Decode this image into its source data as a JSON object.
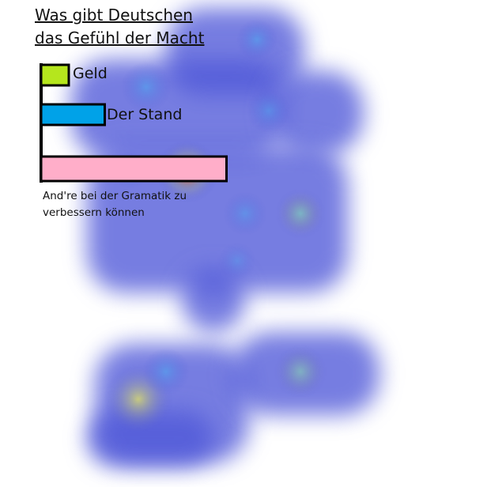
{
  "chart_data": {
    "type": "bar",
    "orientation": "horizontal",
    "title": [
      "Was gibt Deutschen",
      "das Gefühl der Macht"
    ],
    "categories": [
      "Geld",
      "Der Stand",
      "And're bei der Gramatik zu verbessern können"
    ],
    "values": [
      1,
      2.3,
      6.7
    ],
    "colors": [
      "#b5e61d",
      "#00a2e8",
      "#ffaec9"
    ],
    "grid": false,
    "legend": "none"
  },
  "heatmap_overlay": {
    "colors": [
      "#5058d8",
      "#4aa8f0",
      "#ffff40",
      "#ff2000"
    ]
  }
}
